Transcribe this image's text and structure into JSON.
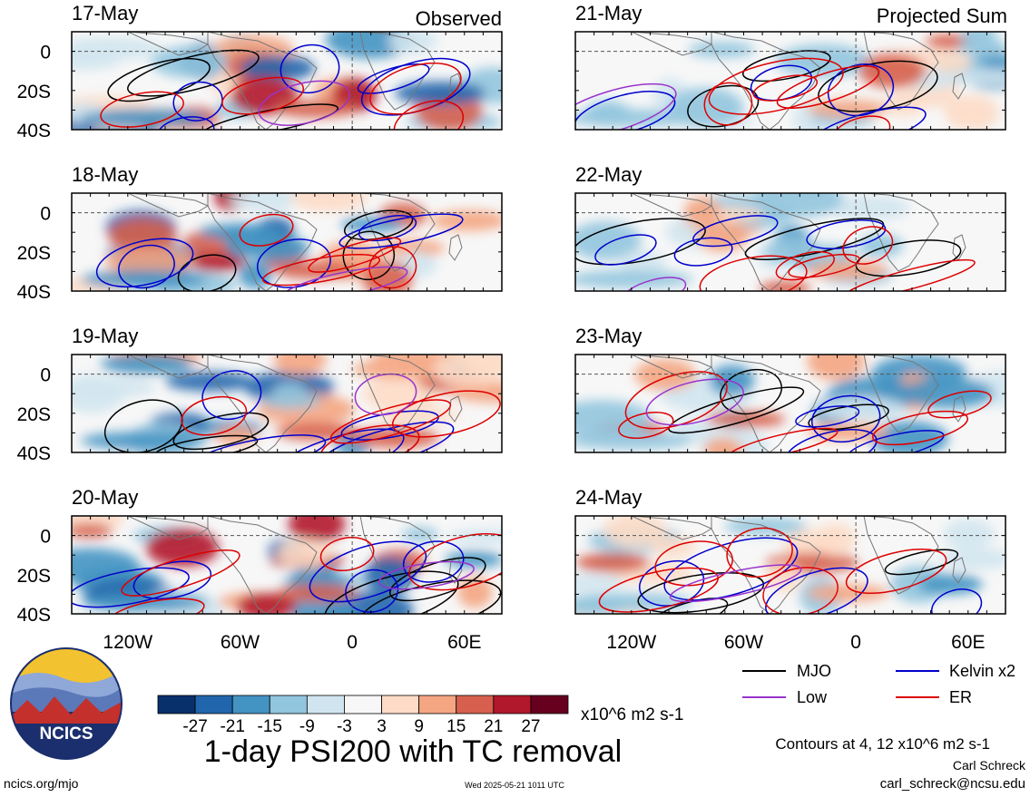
{
  "figure": {
    "title": "1-day PSI200 with TC removal",
    "left_column_label": "Observed",
    "right_column_label": "Projected Sum",
    "units": "x10^6 m2 s-1",
    "contour_note": "Contours at 4, 12 x10^6 m2 s-1",
    "author": "Carl Schreck",
    "email": "carl_schreck@ncsu.edu",
    "url": "ncics.org/mjo",
    "timestamp": "Wed 2025-05-21 1011 UTC",
    "logo_text": "NCICS"
  },
  "chart_data": {
    "type": "heatmap",
    "variable": "PSI200",
    "lat_ticks": [
      "0",
      "20S",
      "40S"
    ],
    "lon_ticks": [
      "120W",
      "60W",
      "0",
      "60E"
    ],
    "lat_range": [
      -40,
      10
    ],
    "lon_range": [
      -150,
      80
    ],
    "colorbar": {
      "labels": [
        "-27",
        "-21",
        "-15",
        "-9",
        "-3",
        "3",
        "9",
        "15",
        "21",
        "27"
      ],
      "colors": [
        "#08306b",
        "#2166ac",
        "#4393c3",
        "#92c5de",
        "#d1e5f0",
        "#f7f7f7",
        "#fddbc7",
        "#f4a582",
        "#d6604d",
        "#b2182b",
        "#67001f"
      ]
    },
    "legend": [
      {
        "name": "MJO",
        "color": "#000000"
      },
      {
        "name": "Kelvin x2",
        "color": "#0000cc"
      },
      {
        "name": "Low",
        "color": "#9933cc"
      },
      {
        "name": "ER",
        "color": "#dd0000"
      }
    ],
    "observed_dates": [
      "17-May",
      "18-May",
      "19-May",
      "20-May"
    ],
    "projected_dates": [
      "21-May",
      "22-May",
      "23-May",
      "24-May"
    ]
  }
}
